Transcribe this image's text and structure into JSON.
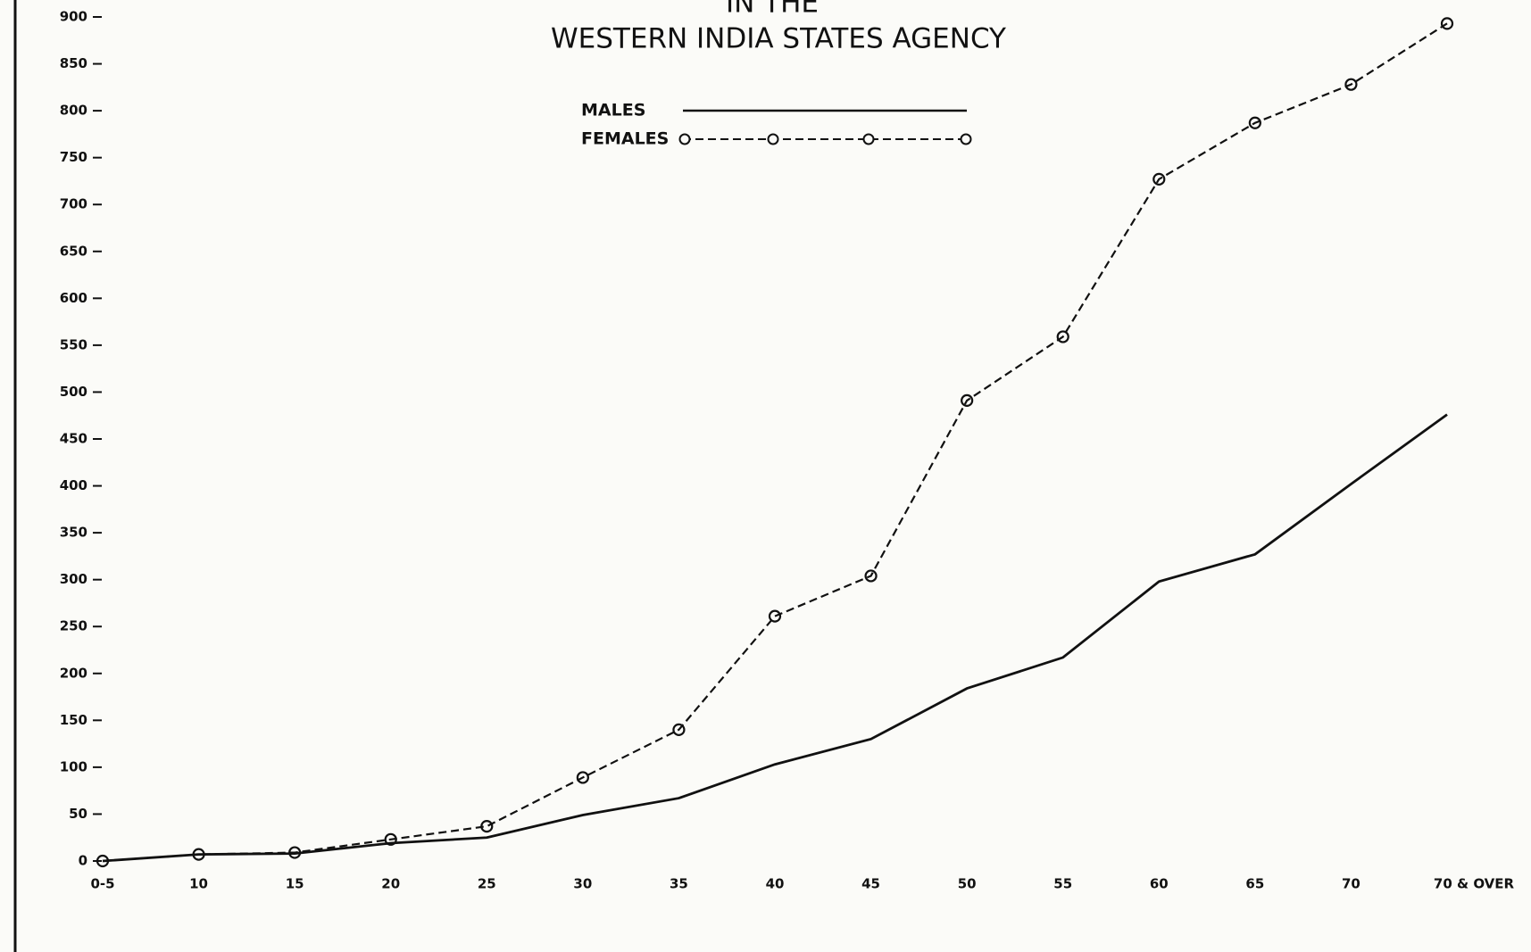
{
  "chart_data": {
    "type": "line",
    "title_lines": [
      "IN THE",
      "WESTERN INDIA STATES AGENCY"
    ],
    "categories": [
      "0-5",
      "10",
      "15",
      "20",
      "25",
      "30",
      "35",
      "40",
      "45",
      "50",
      "55",
      "60",
      "65",
      "70",
      "70 & OVER"
    ],
    "series": [
      {
        "name": "MALES",
        "color": "#111111",
        "dashed": false,
        "markers": false,
        "values": [
          0,
          7,
          8,
          19,
          25,
          49,
          67,
          103,
          130,
          184,
          217,
          298,
          327,
          402,
          476
        ]
      },
      {
        "name": "FEMALES",
        "color": "#111111",
        "dashed": true,
        "markers": true,
        "values": [
          0,
          7,
          9,
          23,
          37,
          89,
          140,
          261,
          304,
          491,
          559,
          727,
          787,
          828,
          893
        ]
      }
    ],
    "ylim": [
      0,
      900
    ],
    "yticks": [
      0,
      50,
      100,
      150,
      200,
      250,
      300,
      350,
      400,
      450,
      500,
      550,
      600,
      650,
      700,
      750,
      800,
      850,
      900
    ]
  }
}
